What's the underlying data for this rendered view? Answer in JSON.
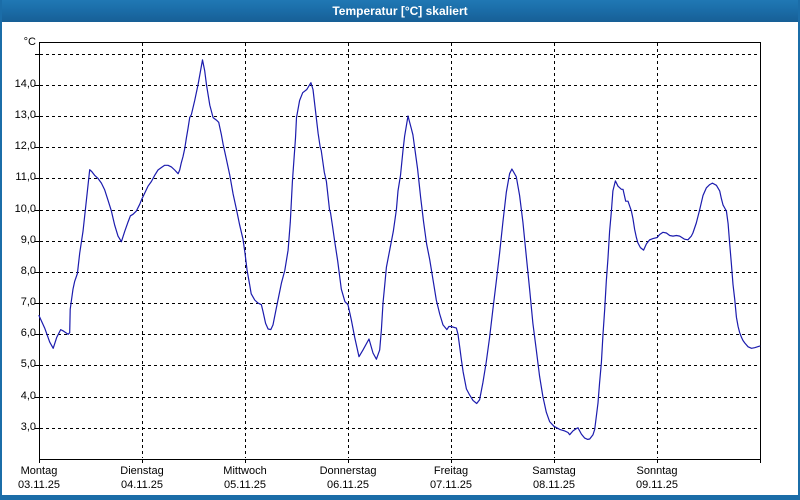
{
  "window": {
    "title": "Temperatur [°C] skaliert"
  },
  "colors": {
    "title_bar": "#1b6da8",
    "title_text": "#ffffff",
    "window_border": "#1b6da8",
    "plot_background": "#ffffff",
    "axis": "#000000",
    "grid": "#000000",
    "line": "#1c1cae",
    "label_text": "#000000"
  },
  "chart_data": {
    "type": "line",
    "title": "Temperatur [°C] skaliert",
    "ylabel": "°C",
    "xlabel": "",
    "ylim": [
      2,
      15.375
    ],
    "xlim_days": [
      0,
      7
    ],
    "grid": "dashed",
    "legend": "none",
    "y_gridlines": [
      3,
      4,
      5,
      6,
      7,
      8,
      9,
      10,
      11,
      12,
      13,
      14,
      15
    ],
    "y_tick_labels": [
      {
        "value": 3,
        "label": "3,0"
      },
      {
        "value": 4,
        "label": "4,0"
      },
      {
        "value": 5,
        "label": "5,0"
      },
      {
        "value": 6,
        "label": "6,0"
      },
      {
        "value": 7,
        "label": "7,0"
      },
      {
        "value": 8,
        "label": "8,0"
      },
      {
        "value": 9,
        "label": "9,0"
      },
      {
        "value": 10,
        "label": "10,0"
      },
      {
        "value": 11,
        "label": "11,0"
      },
      {
        "value": 12,
        "label": "12,0"
      },
      {
        "value": 13,
        "label": "13,0"
      },
      {
        "value": 14,
        "label": "14,0"
      }
    ],
    "x_ticks": [
      {
        "day": 0,
        "weekday": "Montag",
        "date": "03.11.25"
      },
      {
        "day": 1,
        "weekday": "Dienstag",
        "date": "04.11.25"
      },
      {
        "day": 2,
        "weekday": "Mittwoch",
        "date": "05.11.25"
      },
      {
        "day": 3,
        "weekday": "Donnerstag",
        "date": "06.11.25"
      },
      {
        "day": 4,
        "weekday": "Freitag",
        "date": "07.11.25"
      },
      {
        "day": 5,
        "weekday": "Samstag",
        "date": "08.11.25"
      },
      {
        "day": 6,
        "weekday": "Sonntag",
        "date": "09.11.25"
      }
    ],
    "series": [
      {
        "name": "Temperatur",
        "unit": "°C",
        "color": "#1c1cae",
        "points": [
          [
            0.0,
            6.6
          ],
          [
            0.055,
            6.2
          ],
          [
            0.104,
            5.75
          ],
          [
            0.138,
            5.55
          ],
          [
            0.172,
            5.9
          ],
          [
            0.211,
            6.15
          ],
          [
            0.24,
            6.1
          ],
          [
            0.283,
            6.0
          ],
          [
            0.298,
            6.05
          ],
          [
            0.303,
            6.8
          ],
          [
            0.33,
            7.45
          ],
          [
            0.347,
            7.7
          ],
          [
            0.373,
            7.95
          ],
          [
            0.395,
            8.6
          ],
          [
            0.427,
            9.3
          ],
          [
            0.46,
            10.3
          ],
          [
            0.492,
            11.28
          ],
          [
            0.512,
            11.22
          ],
          [
            0.54,
            11.1
          ],
          [
            0.573,
            11.0
          ],
          [
            0.606,
            10.85
          ],
          [
            0.638,
            10.63
          ],
          [
            0.67,
            10.3
          ],
          [
            0.703,
            9.95
          ],
          [
            0.735,
            9.5
          ],
          [
            0.767,
            9.15
          ],
          [
            0.8,
            8.97
          ],
          [
            0.832,
            9.3
          ],
          [
            0.864,
            9.6
          ],
          [
            0.887,
            9.8
          ],
          [
            0.913,
            9.85
          ],
          [
            0.945,
            9.95
          ],
          [
            0.978,
            10.17
          ],
          [
            1.0,
            10.35
          ],
          [
            1.026,
            10.53
          ],
          [
            1.058,
            10.75
          ],
          [
            1.091,
            10.9
          ],
          [
            1.123,
            11.1
          ],
          [
            1.155,
            11.27
          ],
          [
            1.188,
            11.35
          ],
          [
            1.22,
            11.42
          ],
          [
            1.252,
            11.42
          ],
          [
            1.285,
            11.37
          ],
          [
            1.317,
            11.27
          ],
          [
            1.35,
            11.15
          ],
          [
            1.366,
            11.27
          ],
          [
            1.382,
            11.5
          ],
          [
            1.398,
            11.7
          ],
          [
            1.415,
            11.95
          ],
          [
            1.431,
            12.3
          ],
          [
            1.447,
            12.6
          ],
          [
            1.463,
            12.95
          ],
          [
            1.48,
            13.05
          ],
          [
            1.512,
            13.5
          ],
          [
            1.544,
            14.0
          ],
          [
            1.56,
            14.3
          ],
          [
            1.587,
            14.8
          ],
          [
            1.609,
            14.45
          ],
          [
            1.626,
            14.0
          ],
          [
            1.658,
            13.35
          ],
          [
            1.69,
            12.95
          ],
          [
            1.722,
            12.87
          ],
          [
            1.745,
            12.8
          ],
          [
            1.771,
            12.4
          ],
          [
            1.787,
            12.1
          ],
          [
            1.82,
            11.6
          ],
          [
            1.852,
            11.1
          ],
          [
            1.884,
            10.5
          ],
          [
            1.917,
            10.0
          ],
          [
            1.949,
            9.5
          ],
          [
            1.981,
            9.05
          ],
          [
            2.0,
            8.6
          ],
          [
            2.02,
            8.05
          ],
          [
            2.045,
            7.6
          ],
          [
            2.06,
            7.3
          ],
          [
            2.094,
            7.1
          ],
          [
            2.126,
            7.0
          ],
          [
            2.159,
            6.95
          ],
          [
            2.175,
            6.73
          ],
          [
            2.2,
            6.35
          ],
          [
            2.224,
            6.17
          ],
          [
            2.25,
            6.15
          ],
          [
            2.272,
            6.3
          ],
          [
            2.305,
            6.85
          ],
          [
            2.354,
            7.65
          ],
          [
            2.386,
            8.05
          ],
          [
            2.418,
            8.7
          ],
          [
            2.44,
            9.6
          ],
          [
            2.46,
            10.9
          ],
          [
            2.49,
            12.3
          ],
          [
            2.5,
            12.95
          ],
          [
            2.53,
            13.5
          ],
          [
            2.56,
            13.75
          ],
          [
            2.6,
            13.85
          ],
          [
            2.64,
            14.07
          ],
          [
            2.66,
            13.85
          ],
          [
            2.68,
            13.3
          ],
          [
            2.71,
            12.45
          ],
          [
            2.73,
            12.0
          ],
          [
            2.74,
            11.9
          ],
          [
            2.77,
            11.2
          ],
          [
            2.79,
            10.9
          ],
          [
            2.82,
            10.0
          ],
          [
            2.83,
            9.9
          ],
          [
            2.85,
            9.45
          ],
          [
            2.87,
            9.0
          ],
          [
            2.9,
            8.35
          ],
          [
            2.935,
            7.45
          ],
          [
            2.97,
            7.05
          ],
          [
            3.0,
            6.95
          ],
          [
            3.033,
            6.45
          ],
          [
            3.065,
            5.9
          ],
          [
            3.107,
            5.28
          ],
          [
            3.146,
            5.5
          ],
          [
            3.204,
            5.85
          ],
          [
            3.243,
            5.4
          ],
          [
            3.276,
            5.2
          ],
          [
            3.308,
            5.5
          ],
          [
            3.324,
            6.15
          ],
          [
            3.34,
            7.0
          ],
          [
            3.357,
            7.6
          ],
          [
            3.373,
            8.15
          ],
          [
            3.405,
            8.7
          ],
          [
            3.44,
            9.3
          ],
          [
            3.47,
            10.0
          ],
          [
            3.485,
            10.6
          ],
          [
            3.51,
            11.1
          ],
          [
            3.534,
            11.9
          ],
          [
            3.55,
            12.35
          ],
          [
            3.583,
            13.0
          ],
          [
            3.615,
            12.6
          ],
          [
            3.63,
            12.4
          ],
          [
            3.676,
            11.3
          ],
          [
            3.705,
            10.4
          ],
          [
            3.734,
            9.6
          ],
          [
            3.763,
            8.9
          ],
          [
            3.793,
            8.4
          ],
          [
            3.825,
            7.75
          ],
          [
            3.857,
            7.1
          ],
          [
            3.89,
            6.65
          ],
          [
            3.922,
            6.3
          ],
          [
            3.96,
            6.15
          ],
          [
            3.98,
            6.25
          ],
          [
            4.0,
            6.25
          ],
          [
            4.052,
            6.2
          ],
          [
            4.068,
            6.0
          ],
          [
            4.084,
            5.6
          ],
          [
            4.1,
            5.2
          ],
          [
            4.117,
            4.8
          ],
          [
            4.15,
            4.25
          ],
          [
            4.182,
            4.05
          ],
          [
            4.214,
            3.88
          ],
          [
            4.25,
            3.78
          ],
          [
            4.278,
            3.9
          ],
          [
            4.31,
            4.45
          ],
          [
            4.342,
            5.1
          ],
          [
            4.375,
            5.9
          ],
          [
            4.407,
            6.8
          ],
          [
            4.44,
            7.7
          ],
          [
            4.472,
            8.6
          ],
          [
            4.504,
            9.6
          ],
          [
            4.537,
            10.55
          ],
          [
            4.569,
            11.15
          ],
          [
            4.591,
            11.3
          ],
          [
            4.634,
            11.05
          ],
          [
            4.666,
            10.45
          ],
          [
            4.698,
            9.6
          ],
          [
            4.731,
            8.5
          ],
          [
            4.763,
            7.45
          ],
          [
            4.795,
            6.35
          ],
          [
            4.828,
            5.5
          ],
          [
            4.86,
            4.65
          ],
          [
            4.892,
            4.0
          ],
          [
            4.925,
            3.5
          ],
          [
            4.957,
            3.2
          ],
          [
            5.0,
            3.05
          ],
          [
            5.055,
            2.95
          ],
          [
            5.104,
            2.9
          ],
          [
            5.136,
            2.85
          ],
          [
            5.152,
            2.78
          ],
          [
            5.184,
            2.9
          ],
          [
            5.22,
            2.98
          ],
          [
            5.233,
            3.0
          ],
          [
            5.266,
            2.8
          ],
          [
            5.298,
            2.67
          ],
          [
            5.327,
            2.63
          ],
          [
            5.347,
            2.64
          ],
          [
            5.379,
            2.78
          ],
          [
            5.395,
            2.95
          ],
          [
            5.427,
            3.8
          ],
          [
            5.443,
            4.45
          ],
          [
            5.46,
            5.1
          ],
          [
            5.475,
            5.95
          ],
          [
            5.492,
            6.8
          ],
          [
            5.508,
            7.7
          ],
          [
            5.524,
            8.45
          ],
          [
            5.54,
            9.3
          ],
          [
            5.557,
            9.95
          ],
          [
            5.572,
            10.6
          ],
          [
            5.596,
            10.92
          ],
          [
            5.621,
            10.75
          ],
          [
            5.654,
            10.65
          ],
          [
            5.67,
            10.65
          ],
          [
            5.696,
            10.27
          ],
          [
            5.718,
            10.27
          ],
          [
            5.751,
            9.95
          ],
          [
            5.767,
            9.7
          ],
          [
            5.783,
            9.37
          ],
          [
            5.8,
            9.1
          ],
          [
            5.815,
            8.93
          ],
          [
            5.839,
            8.78
          ],
          [
            5.87,
            8.7
          ],
          [
            5.897,
            8.9
          ],
          [
            5.929,
            9.03
          ],
          [
            5.961,
            9.07
          ],
          [
            6.0,
            9.1
          ],
          [
            6.026,
            9.2
          ],
          [
            6.058,
            9.27
          ],
          [
            6.091,
            9.25
          ],
          [
            6.123,
            9.17
          ],
          [
            6.155,
            9.15
          ],
          [
            6.188,
            9.17
          ],
          [
            6.22,
            9.15
          ],
          [
            6.268,
            9.05
          ],
          [
            6.3,
            9.03
          ],
          [
            6.333,
            9.15
          ],
          [
            6.349,
            9.25
          ],
          [
            6.382,
            9.57
          ],
          [
            6.415,
            10.0
          ],
          [
            6.447,
            10.45
          ],
          [
            6.48,
            10.7
          ],
          [
            6.512,
            10.8
          ],
          [
            6.538,
            10.85
          ],
          [
            6.577,
            10.78
          ],
          [
            6.609,
            10.6
          ],
          [
            6.625,
            10.35
          ],
          [
            6.641,
            10.15
          ],
          [
            6.657,
            10.05
          ],
          [
            6.674,
            9.95
          ],
          [
            6.69,
            9.55
          ],
          [
            6.706,
            8.9
          ],
          [
            6.722,
            8.25
          ],
          [
            6.738,
            7.6
          ],
          [
            6.755,
            7.1
          ],
          [
            6.771,
            6.55
          ],
          [
            6.787,
            6.25
          ],
          [
            6.803,
            6.05
          ],
          [
            6.82,
            5.9
          ],
          [
            6.835,
            5.8
          ],
          [
            6.852,
            5.72
          ],
          [
            6.884,
            5.6
          ],
          [
            6.917,
            5.55
          ],
          [
            6.949,
            5.57
          ],
          [
            6.998,
            5.62
          ]
        ]
      }
    ]
  }
}
